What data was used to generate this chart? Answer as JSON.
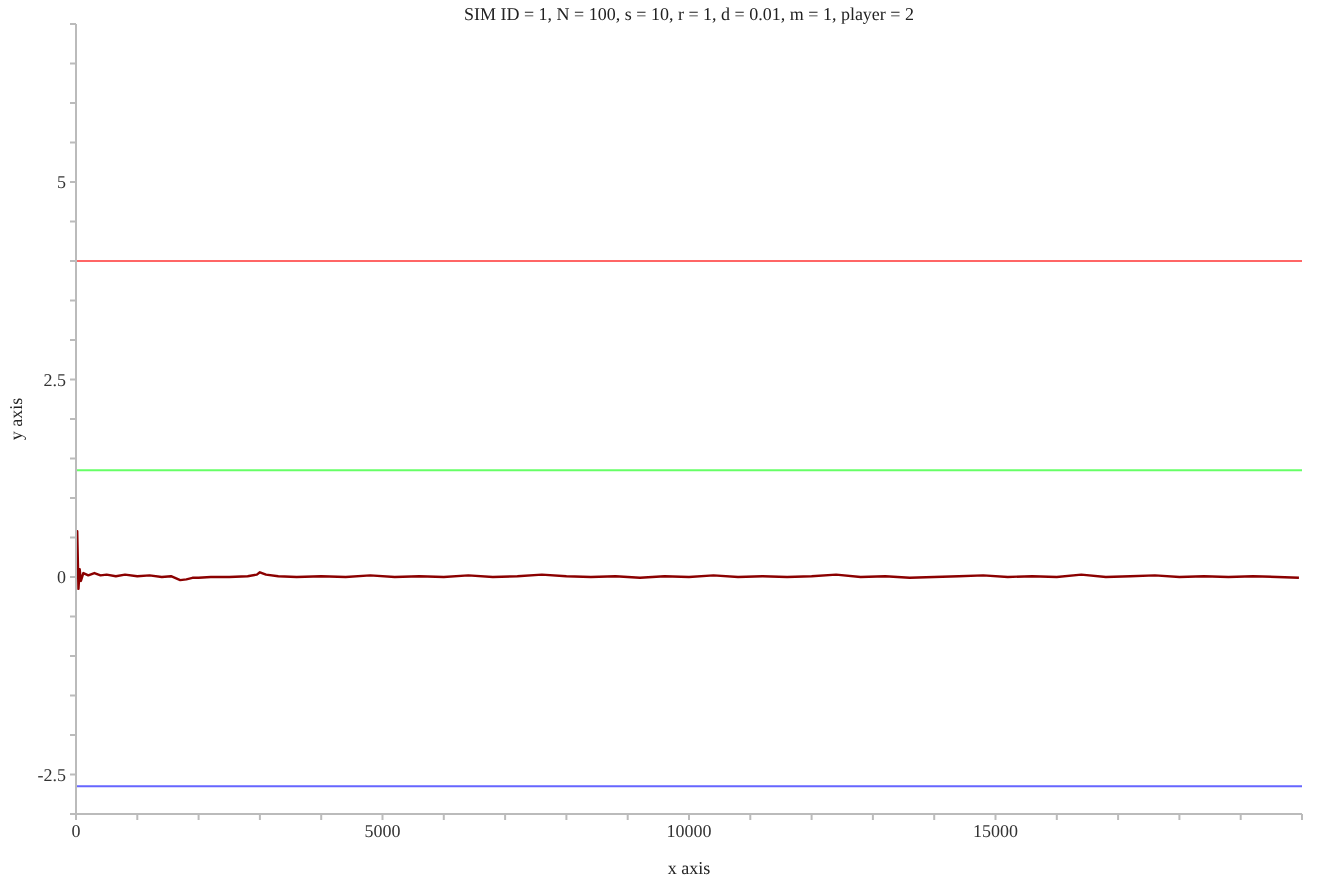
{
  "chart_data": {
    "type": "line",
    "title": "SIM ID = 1, N = 100, s = 10, r = 1, d = 0.01, m = 1, player = 2",
    "xlabel": "x axis",
    "ylabel": "y axis",
    "x": [
      0,
      20,
      40,
      60,
      80,
      120,
      200,
      300,
      400,
      500,
      650,
      800,
      1000,
      1200,
      1400,
      1550,
      1700,
      1800,
      1900,
      2000,
      2200,
      2500,
      2800,
      2950,
      3000,
      3100,
      3300,
      3600,
      4000,
      4400,
      4800,
      5200,
      5600,
      6000,
      6400,
      6800,
      7200,
      7600,
      8000,
      8400,
      8800,
      9200,
      9600,
      10000,
      10400,
      10800,
      11200,
      11600,
      12000,
      12400,
      12800,
      13200,
      13600,
      14000,
      14400,
      14800,
      15200,
      15600,
      16000,
      16400,
      16800,
      17200,
      17600,
      18000,
      18400,
      18800,
      19200,
      19600,
      19950
    ],
    "series": [
      {
        "color": "#8b0000",
        "values": [
          0,
          0.58,
          -0.15,
          0.1,
          -0.05,
          0.05,
          0.02,
          0.05,
          0.02,
          0.03,
          0.01,
          0.03,
          0.01,
          0.02,
          0,
          0.01,
          -0.04,
          -0.03,
          -0.01,
          -0.01,
          0,
          0,
          0.01,
          0.03,
          0.06,
          0.03,
          0.01,
          0,
          0.01,
          0,
          0.02,
          0,
          0.01,
          0,
          0.02,
          0,
          0.01,
          0.03,
          0.01,
          0,
          0.01,
          -0.01,
          0.01,
          0,
          0.02,
          0,
          0.01,
          0,
          0.01,
          0.03,
          0,
          0.01,
          -0.01,
          0,
          0.01,
          0.02,
          0,
          0.01,
          0,
          0.03,
          0,
          0.01,
          0.02,
          0,
          0.01,
          0,
          0.01,
          0,
          -0.01
        ]
      }
    ],
    "ref_lines": [
      {
        "axis": "y",
        "value": 4,
        "color": "#ff6666"
      },
      {
        "axis": "y",
        "value": 1.35,
        "color": "#66ff66"
      },
      {
        "axis": "y",
        "value": -2.65,
        "color": "#6666ff"
      }
    ],
    "xlim": [
      0,
      20000
    ],
    "ylim": [
      -3,
      7
    ],
    "xticks": [
      0,
      {
        "value": 1000,
        "label": null
      },
      {
        "value": 2000,
        "label": null
      },
      {
        "value": 3000,
        "label": null
      },
      {
        "value": 4000,
        "label": null
      },
      5000,
      {
        "value": 6000,
        "label": null
      },
      {
        "value": 7000,
        "label": null
      },
      {
        "value": 8000,
        "label": null
      },
      {
        "value": 9000,
        "label": null
      },
      10000,
      {
        "value": 11000,
        "label": null
      },
      {
        "value": 12000,
        "label": null
      },
      {
        "value": 13000,
        "label": null
      },
      {
        "value": 14000,
        "label": null
      },
      15000,
      {
        "value": 16000,
        "label": null
      },
      {
        "value": 17000,
        "label": null
      },
      {
        "value": 18000,
        "label": null
      },
      {
        "value": 19000,
        "label": null
      },
      {
        "value": 20000,
        "label": null
      }
    ],
    "yticks": [
      {
        "value": -3,
        "label": null
      },
      -2.5,
      {
        "value": -2,
        "label": null
      },
      {
        "value": -1.5,
        "label": null
      },
      {
        "value": -1,
        "label": null
      },
      {
        "value": -0.5,
        "label": null
      },
      0,
      {
        "value": 0.5,
        "label": null
      },
      {
        "value": 1,
        "label": null
      },
      {
        "value": 1.5,
        "label": null
      },
      {
        "value": 2,
        "label": null
      },
      2.5,
      {
        "value": 3,
        "label": null
      },
      {
        "value": 3.5,
        "label": null
      },
      {
        "value": 4,
        "label": null
      },
      {
        "value": 4.5,
        "label": null
      },
      5,
      {
        "value": 5.5,
        "label": null
      },
      {
        "value": 6,
        "label": null
      },
      {
        "value": 6.5,
        "label": null
      },
      {
        "value": 7,
        "label": null
      }
    ],
    "grid": false,
    "legend": false,
    "marker": "none",
    "line_style": "solid"
  }
}
